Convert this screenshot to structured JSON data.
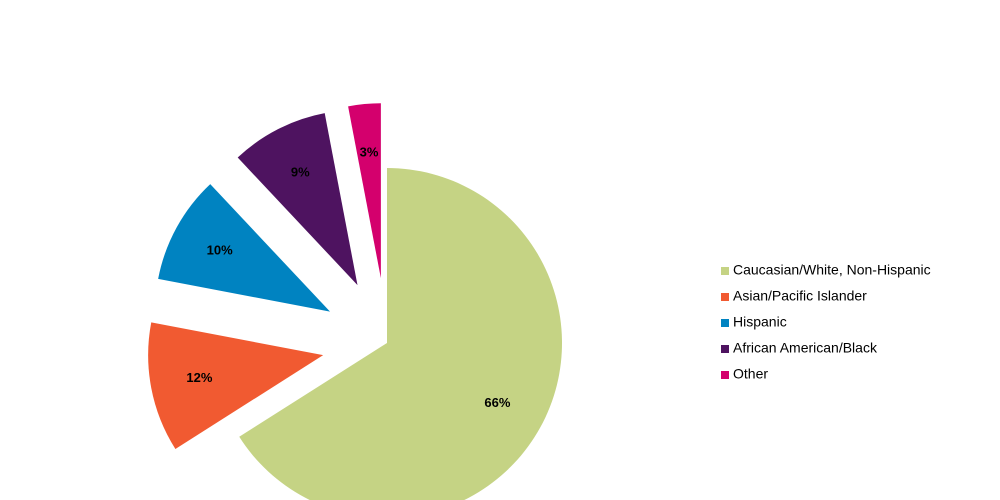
{
  "chart_data": {
    "type": "pie",
    "categories": [
      "Caucasian/White, Non-Hispanic",
      "Asian/Pacific Islander",
      "Hispanic",
      "African American/Black",
      "Other"
    ],
    "values": [
      66,
      12,
      10,
      9,
      3
    ],
    "value_labels": [
      "66%",
      "12%",
      "10%",
      "9%",
      "3%"
    ],
    "colors": [
      "#c5d384",
      "#f15a31",
      "#0083c1",
      "#4e1360",
      "#d4006d"
    ],
    "legend": "right"
  }
}
